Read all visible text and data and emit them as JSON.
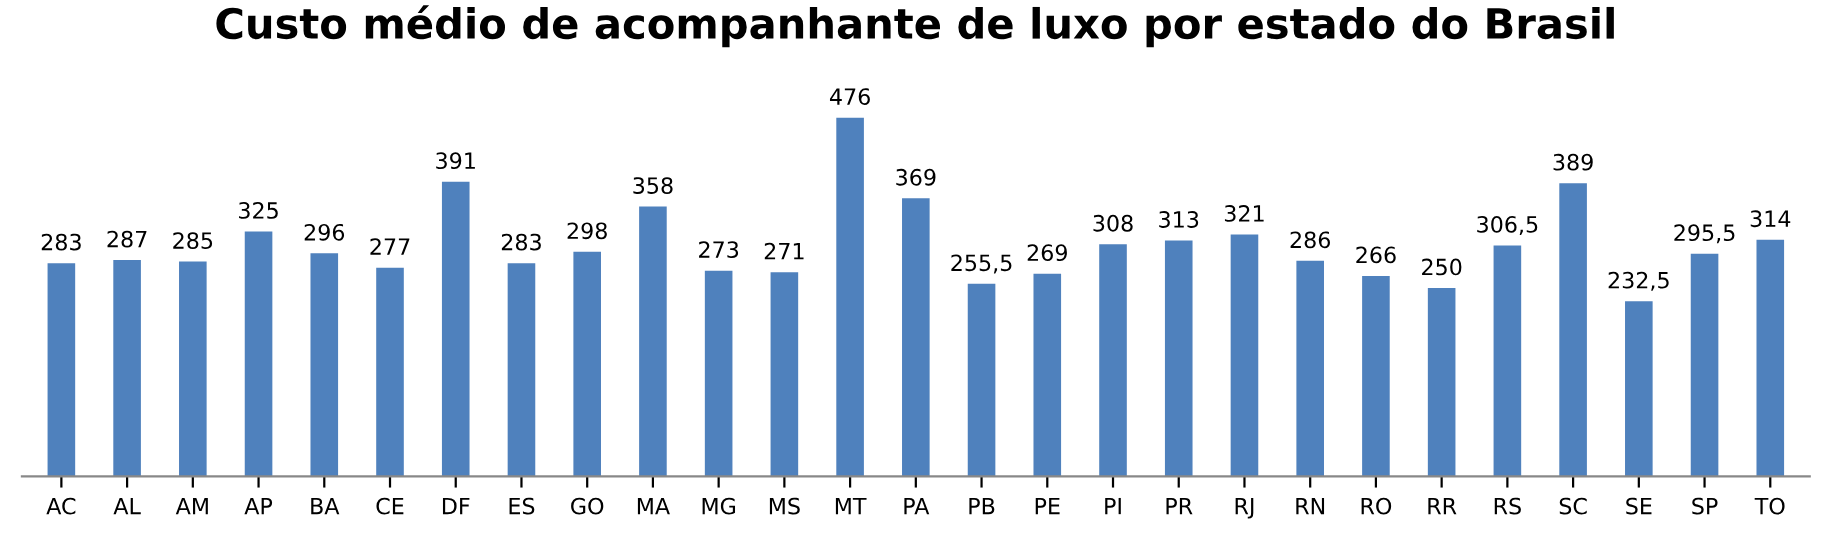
{
  "chart_data": {
    "type": "bar",
    "title": "Custo médio de acompanhante de luxo por estado do Brasil",
    "categories": [
      "AC",
      "AL",
      "AM",
      "AP",
      "BA",
      "CE",
      "DF",
      "ES",
      "GO",
      "MA",
      "MG",
      "MS",
      "MT",
      "PA",
      "PB",
      "PE",
      "PI",
      "PR",
      "RJ",
      "RN",
      "RO",
      "RR",
      "RS",
      "SC",
      "SE",
      "SP",
      "TO"
    ],
    "values": [
      283,
      287,
      285,
      325,
      296,
      277,
      391,
      283,
      298,
      358,
      273,
      271,
      476,
      369,
      255.5,
      269,
      308,
      313,
      321,
      286,
      266,
      250,
      306.5,
      389,
      232.5,
      295.5,
      314
    ],
    "value_labels": [
      "283",
      "287",
      "285",
      "325",
      "296",
      "277",
      "391",
      "283",
      "298",
      "358",
      "273",
      "271",
      "476",
      "369",
      "255,5",
      "269",
      "308",
      "313",
      "321",
      "286",
      "266",
      "250",
      "306,5",
      "389",
      "232,5",
      "295,5",
      "314"
    ],
    "color": "#4f81bd",
    "tick_labels": "x",
    "grid": false
  }
}
